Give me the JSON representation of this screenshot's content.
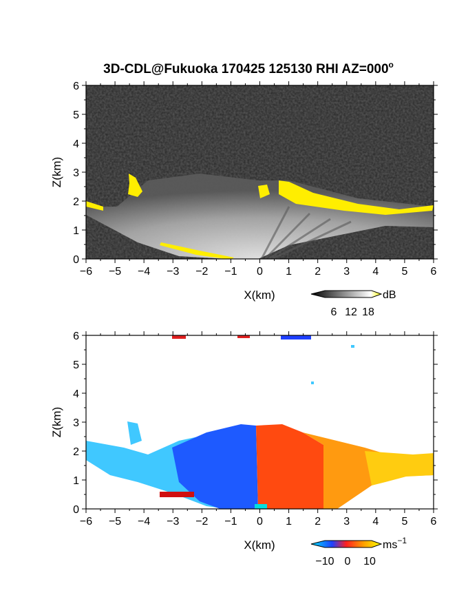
{
  "title": "3D-CDL@Fukuoka 170425 125130 RHI AZ=000",
  "title_superscript": "o",
  "chart_data": [
    {
      "type": "heatmap",
      "panel": "reflectivity",
      "xlabel": "X(km)",
      "ylabel": "Z(km)",
      "xlim": [
        -6,
        6
      ],
      "ylim": [
        0,
        6
      ],
      "xticks": [
        -6,
        -5,
        -4,
        -3,
        -2,
        -1,
        0,
        1,
        2,
        3,
        4,
        5,
        6
      ],
      "yticks": [
        0,
        1,
        2,
        3,
        4,
        5,
        6
      ],
      "grid": false,
      "colorbar": {
        "unit": "dB",
        "ticks": [
          6,
          12,
          18
        ],
        "colors": [
          "#000000",
          "#ffffff",
          "#ffff00"
        ]
      },
      "colors": {
        "background": "#2a2a2a",
        "echo": "#c8c8c8",
        "strong": "#ffee00"
      }
    },
    {
      "type": "heatmap",
      "panel": "doppler-velocity",
      "xlabel": "X(km)",
      "ylabel": "Z(km)",
      "xlim": [
        -6,
        6
      ],
      "ylim": [
        0,
        6
      ],
      "xticks": [
        -6,
        -5,
        -4,
        -3,
        -2,
        -1,
        0,
        1,
        2,
        3,
        4,
        5,
        6
      ],
      "yticks": [
        0,
        1,
        2,
        3,
        4,
        5,
        6
      ],
      "grid": false,
      "colorbar": {
        "unit": "ms",
        "unit_superscript": "−1",
        "ticks": [
          "−10",
          "0",
          "10"
        ],
        "colors": [
          "#00e5ff",
          "#1e40ff",
          "#ff2020",
          "#ffa000",
          "#ffff00"
        ]
      },
      "colors": {
        "toward": "#1e5aff",
        "away": "#ff5a10",
        "light": "#40c8ff",
        "far": "#ffd000"
      }
    }
  ]
}
